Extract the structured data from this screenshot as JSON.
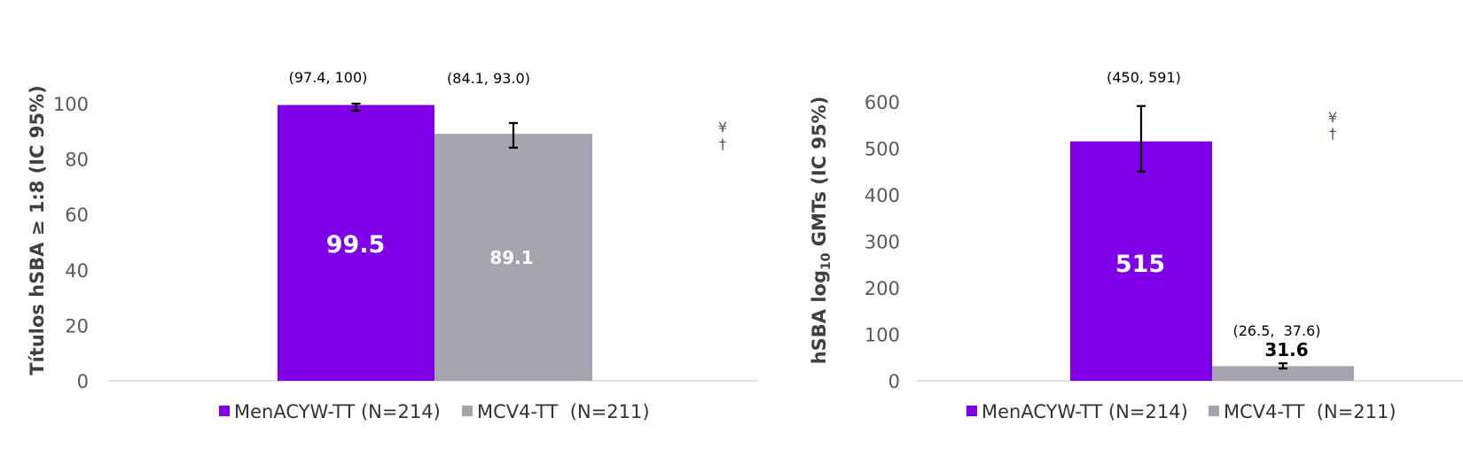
{
  "colors": {
    "menacyw": "#7f00e8",
    "mcv4": "#a5a3ae",
    "axis": "#d9d9d9"
  },
  "chart_data": [
    {
      "type": "bar",
      "ylabel": "Títulos hSBA ≥ 1:8 (IC 95%)",
      "ylim": [
        0,
        100
      ],
      "yticks": [
        "0",
        "20",
        "40",
        "60",
        "80",
        "100"
      ],
      "grid": false,
      "legend_position": "bottom",
      "symbols": [
        "¥",
        "†"
      ],
      "series": [
        {
          "name": "MenACYW-TT (N=214)",
          "value": 99.5,
          "value_label": "99.5",
          "ci": [
            97.4,
            100
          ],
          "ci_label": "(97.4, 100)"
        },
        {
          "name": "MCV4-TT  (N=211)",
          "value": 89.1,
          "value_label": "89.1",
          "ci": [
            84.1,
            93.0
          ],
          "ci_label": "(84.1, 93.0)"
        }
      ]
    },
    {
      "type": "bar",
      "ylabel_main": "hSBA log",
      "ylabel_sub": "10",
      "ylabel_tail": " GMTs (IC 95%)",
      "ylim": [
        0,
        600
      ],
      "yticks": [
        "0",
        "100",
        "200",
        "300",
        "400",
        "500",
        "600"
      ],
      "grid": false,
      "legend_position": "bottom",
      "symbols": [
        "¥",
        "†"
      ],
      "series": [
        {
          "name": "MenACYW-TT (N=214)",
          "value": 515,
          "value_label": "515",
          "ci": [
            450,
            591
          ],
          "ci_label": "(450, 591)"
        },
        {
          "name": "MCV4-TT  (N=211)",
          "value": 31.6,
          "value_label": "31.6",
          "ci": [
            26.5,
            37.6
          ],
          "ci_label": "(26.5,  37.6)"
        }
      ]
    }
  ]
}
